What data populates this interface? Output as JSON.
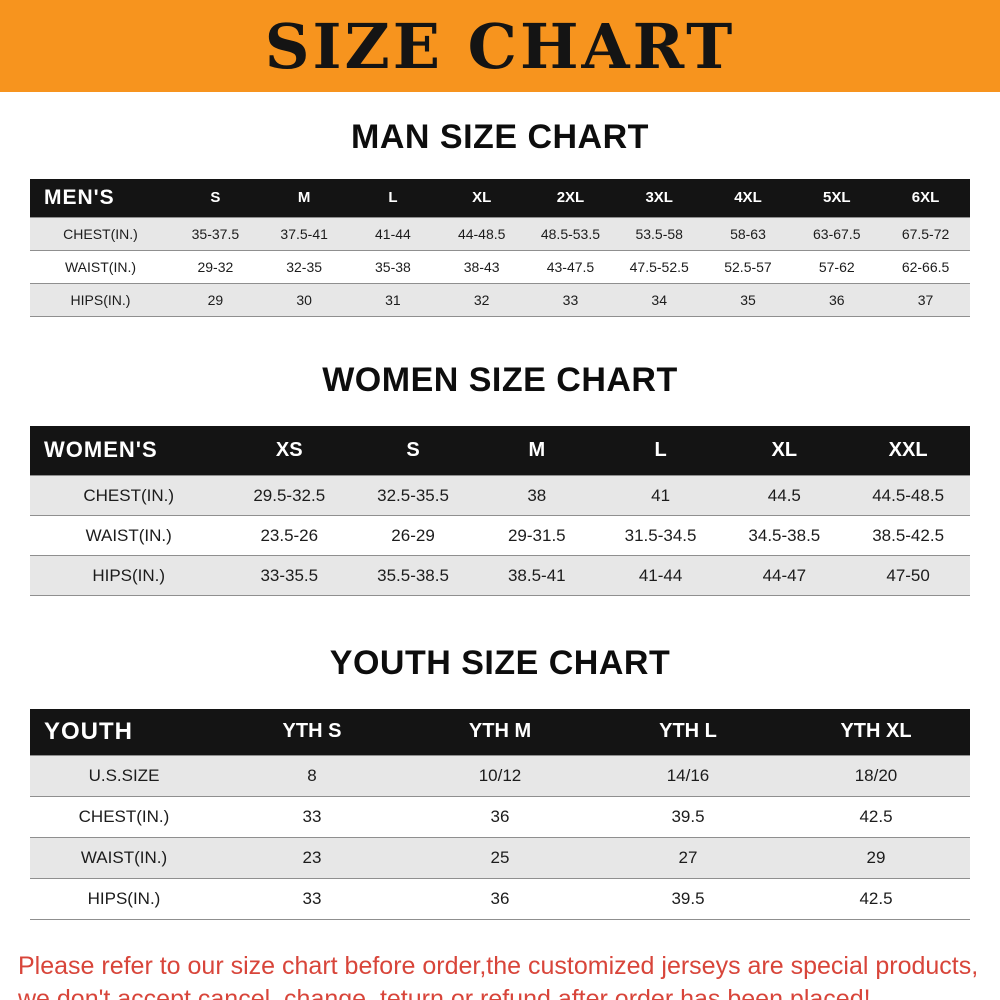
{
  "banner": {
    "title": "SIZE CHART",
    "bg": "#f7941e"
  },
  "sections": {
    "men_heading": "MAN SIZE CHART",
    "women_heading": "WOMEN SIZE CHART",
    "youth_heading": "YOUTH SIZE CHART"
  },
  "tables": {
    "men": {
      "header_label": "MEN'S",
      "columns": [
        "S",
        "M",
        "L",
        "XL",
        "2XL",
        "3XL",
        "4XL",
        "5XL",
        "6XL"
      ],
      "rows": [
        {
          "label": "CHEST(IN.)",
          "values": [
            "35-37.5",
            "37.5-41",
            "41-44",
            "44-48.5",
            "48.5-53.5",
            "53.5-58",
            "58-63",
            "63-67.5",
            "67.5-72"
          ]
        },
        {
          "label": "WAIST(IN.)",
          "values": [
            "29-32",
            "32-35",
            "35-38",
            "38-43",
            "43-47.5",
            "47.5-52.5",
            "52.5-57",
            "57-62",
            "62-66.5"
          ]
        },
        {
          "label": "HIPS(IN.)",
          "values": [
            "29",
            "30",
            "31",
            "32",
            "33",
            "34",
            "35",
            "36",
            "37"
          ]
        }
      ]
    },
    "women": {
      "header_label": "WOMEN'S",
      "columns": [
        "XS",
        "S",
        "M",
        "L",
        "XL",
        "XXL"
      ],
      "rows": [
        {
          "label": "CHEST(IN.)",
          "values": [
            "29.5-32.5",
            "32.5-35.5",
            "38",
            "41",
            "44.5",
            "44.5-48.5"
          ]
        },
        {
          "label": "WAIST(IN.)",
          "values": [
            "23.5-26",
            "26-29",
            "29-31.5",
            "31.5-34.5",
            "34.5-38.5",
            "38.5-42.5"
          ]
        },
        {
          "label": "HIPS(IN.)",
          "values": [
            "33-35.5",
            "35.5-38.5",
            "38.5-41",
            "41-44",
            "44-47",
            "47-50"
          ]
        }
      ]
    },
    "youth": {
      "header_label": "YOUTH",
      "columns": [
        "YTH S",
        "YTH M",
        "YTH L",
        "YTH XL"
      ],
      "rows": [
        {
          "label": "U.S.SIZE",
          "values": [
            "8",
            "10/12",
            "14/16",
            "18/20"
          ]
        },
        {
          "label": "CHEST(IN.)",
          "values": [
            "33",
            "36",
            "39.5",
            "42.5"
          ]
        },
        {
          "label": "WAIST(IN.)",
          "values": [
            "23",
            "25",
            "27",
            "29"
          ]
        },
        {
          "label": "HIPS(IN.)",
          "values": [
            "33",
            "36",
            "39.5",
            "42.5"
          ]
        }
      ]
    }
  },
  "note": {
    "color": "#d8453a",
    "lines": [
      "Please refer to our size chart before order,the customized jerseys are special products,",
      "we don't accept cancel, change, teturn or refund after order has been placed!"
    ]
  }
}
